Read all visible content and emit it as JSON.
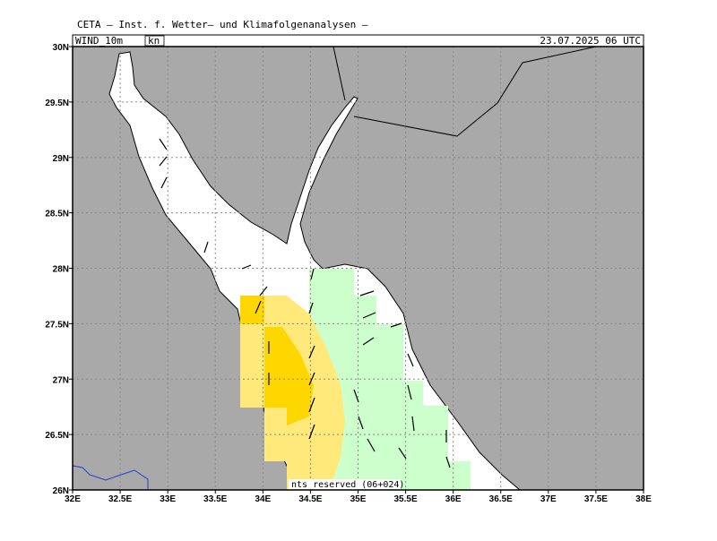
{
  "header": {
    "title": "CETA – Inst. f. Wetter– und Klimafolgenanalysen –",
    "field": "WIND_10m",
    "unit": "kn",
    "valid_time": "23.07.2025 06 UTC"
  },
  "map": {
    "lon_labels": [
      "32E",
      "32.5E",
      "33E",
      "33.5E",
      "34E",
      "34.5E",
      "35E",
      "35.5E",
      "36E",
      "36.5E",
      "37E",
      "37.5E",
      "38E"
    ],
    "lat_labels": [
      "26N",
      "26.5N",
      "27N",
      "27.5N",
      "28N",
      "28.5N",
      "29N",
      "29.5N",
      "30N"
    ],
    "footer_note": "nts reserved (06+024)"
  }
}
